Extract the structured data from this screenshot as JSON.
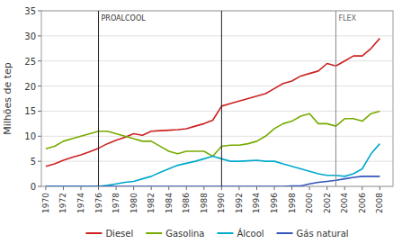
{
  "chart_data": {
    "type": "line",
    "ylabel": "Milhões de tep",
    "x": [
      1970,
      1971,
      1972,
      1973,
      1974,
      1975,
      1976,
      1977,
      1978,
      1979,
      1980,
      1981,
      1982,
      1983,
      1984,
      1985,
      1986,
      1987,
      1988,
      1989,
      1990,
      1991,
      1992,
      1993,
      1994,
      1995,
      1996,
      1997,
      1998,
      1999,
      2000,
      2001,
      2002,
      2003,
      2004,
      2005,
      2006,
      2007,
      2008
    ],
    "series": [
      {
        "name": "Diesel",
        "color": "#cc2222",
        "values": [
          4.0,
          4.5,
          5.2,
          5.8,
          6.3,
          6.9,
          7.6,
          8.5,
          9.2,
          9.8,
          10.5,
          10.2,
          11.0,
          11.1,
          11.2,
          11.3,
          11.5,
          12.0,
          12.5,
          13.2,
          16.0,
          16.5,
          17.0,
          17.5,
          18.0,
          18.5,
          19.5,
          20.5,
          21.0,
          22.0,
          22.5,
          23.0,
          24.5,
          24.0,
          25.0,
          26.0,
          26.0,
          27.5,
          29.5
        ]
      },
      {
        "name": "Gasolina",
        "color": "#77aa00",
        "values": [
          7.5,
          8.0,
          9.0,
          9.5,
          10.0,
          10.5,
          11.0,
          11.0,
          10.5,
          10.0,
          9.5,
          9.0,
          9.0,
          8.0,
          7.0,
          6.5,
          7.0,
          7.0,
          7.0,
          6.0,
          8.0,
          8.2,
          8.2,
          8.5,
          9.0,
          10.0,
          11.5,
          12.5,
          13.0,
          14.0,
          14.5,
          12.5,
          12.5,
          12.0,
          13.5,
          13.5,
          13.0,
          14.5,
          15.0
        ]
      },
      {
        "name": "Álcool",
        "color": "#00aacc",
        "values": [
          0.0,
          0.0,
          0.0,
          0.0,
          0.0,
          0.0,
          0.0,
          0.2,
          0.5,
          0.8,
          1.0,
          1.5,
          2.0,
          2.8,
          3.5,
          4.2,
          4.6,
          5.0,
          5.5,
          6.0,
          5.5,
          5.0,
          5.0,
          5.1,
          5.2,
          5.0,
          5.0,
          4.5,
          4.0,
          3.5,
          3.0,
          2.5,
          2.2,
          2.2,
          2.0,
          2.5,
          3.5,
          6.5,
          8.5
        ]
      },
      {
        "name": "Gás natural",
        "color": "#3355bb",
        "values": [
          0.0,
          0.0,
          0.0,
          0.0,
          0.0,
          0.0,
          0.0,
          0.0,
          0.0,
          0.0,
          0.0,
          0.0,
          0.0,
          0.0,
          0.0,
          0.0,
          0.0,
          0.0,
          0.0,
          0.0,
          0.0,
          0.0,
          0.0,
          0.0,
          0.0,
          0.0,
          0.0,
          0.0,
          0.1,
          0.1,
          0.5,
          0.8,
          1.0,
          1.2,
          1.5,
          1.8,
          2.0,
          2.0,
          2.0
        ]
      }
    ],
    "vlines": [
      {
        "x": 1976,
        "label": "PROALCOOL"
      },
      {
        "x": 1990
      },
      {
        "x": 2003,
        "label": "FLEX"
      }
    ],
    "xlim": [
      1969.5,
      2009.5
    ],
    "xticks": [
      1970,
      1972,
      1974,
      1976,
      1978,
      1980,
      1982,
      1984,
      1986,
      1988,
      1990,
      1992,
      1994,
      1996,
      1998,
      2000,
      2002,
      2004,
      2006,
      2008
    ],
    "ylim": [
      0,
      35
    ],
    "yticks": [
      0,
      5,
      10,
      15,
      20,
      25,
      30,
      35
    ],
    "grid": true,
    "legend": "bottom"
  }
}
